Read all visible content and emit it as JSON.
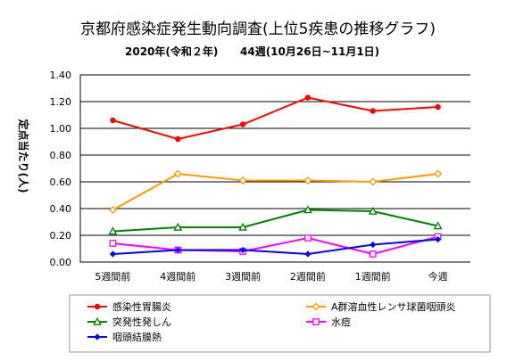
{
  "chart_data": {
    "type": "line",
    "title": "京都府感染症発生動向調査(上位5疾患の推移グラフ)",
    "subtitle_year": "2020年(令和２年)",
    "subtitle_week": "44週(10月26日~11月1日)",
    "ylabel": "定点当たり(人)",
    "ylim": [
      0,
      1.4
    ],
    "yticks": [
      "0.00",
      "0.20",
      "0.40",
      "0.60",
      "0.80",
      "1.00",
      "1.20",
      "1.40"
    ],
    "grid": true,
    "legend_position": "bottom",
    "categories": [
      "5週間前",
      "4週間前",
      "3週間前",
      "2週間前",
      "1週間前",
      "今週"
    ],
    "series": [
      {
        "name": "感染性胃腸炎",
        "color": "#ff0000",
        "marker": "circle",
        "values": [
          1.06,
          0.92,
          1.03,
          1.23,
          1.13,
          1.16
        ]
      },
      {
        "name": "A群溶血性レンサ球菌咽頭炎",
        "color": "#ff9900",
        "marker": "diamond",
        "values": [
          0.39,
          0.66,
          0.61,
          0.61,
          0.6,
          0.66
        ]
      },
      {
        "name": "突発性発しん",
        "color": "#008000",
        "marker": "triangle",
        "values": [
          0.23,
          0.26,
          0.26,
          0.39,
          0.38,
          0.27
        ]
      },
      {
        "name": "水痘",
        "color": "#ff00ff",
        "marker": "square",
        "values": [
          0.14,
          0.09,
          0.08,
          0.18,
          0.06,
          0.19
        ]
      },
      {
        "name": "咽頭結膜熱",
        "color": "#0000ff",
        "marker": "diamond-filled",
        "values": [
          0.06,
          0.09,
          0.09,
          0.06,
          0.13,
          0.17
        ]
      }
    ]
  }
}
